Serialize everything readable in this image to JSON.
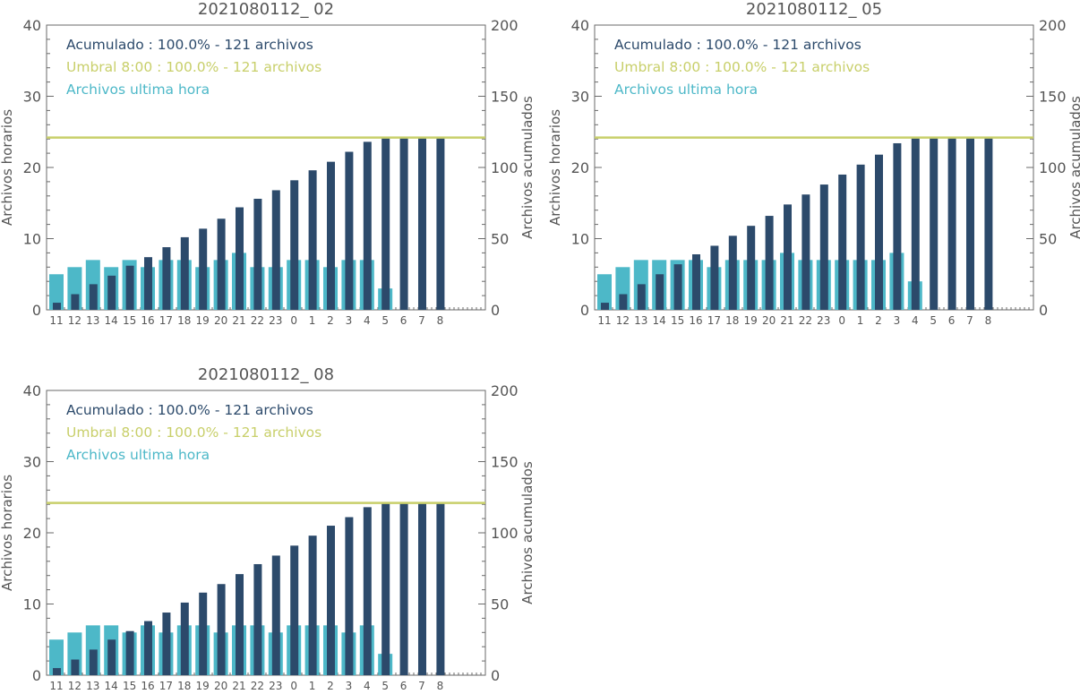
{
  "colors": {
    "hourly": "#4db8c8",
    "cumulative": "#2c4a6b",
    "threshold": "#c8cf6a",
    "axis": "#6a6a6a",
    "label": "#555555"
  },
  "chart_data": [
    {
      "type": "bar",
      "title": "2021080112_ 02",
      "ylabel": "Archivos horarios",
      "ylabel_right": "Archivos acumulados",
      "ylim": [
        0,
        40
      ],
      "ylim_right": [
        0,
        200
      ],
      "yticks": [
        "0",
        "10",
        "20",
        "30",
        "40"
      ],
      "yticks_right": [
        "0",
        "50",
        "100",
        "150",
        "200"
      ],
      "categories": [
        "11",
        "12",
        "13",
        "14",
        "15",
        "16",
        "17",
        "18",
        "19",
        "20",
        "21",
        "22",
        "23",
        "0",
        "1",
        "2",
        "3",
        "4",
        "5",
        "6",
        "7",
        "8"
      ],
      "legend": [
        "Acumulado : 100.0% - 121 archivos",
        "Umbral 8:00 : 100.0% - 121 archivos",
        "Archivos ultima hora"
      ],
      "threshold": 121,
      "series": [
        {
          "name": "Archivos ultima hora",
          "values": [
            5,
            6,
            7,
            6,
            7,
            6,
            7,
            7,
            6,
            7,
            8,
            6,
            6,
            7,
            7,
            6,
            7,
            7,
            3,
            null,
            null,
            null
          ]
        },
        {
          "name": "Acumulado",
          "values": [
            5,
            11,
            18,
            24,
            31,
            37,
            44,
            51,
            57,
            64,
            72,
            78,
            84,
            91,
            98,
            104,
            111,
            118,
            121,
            121,
            121,
            121
          ]
        }
      ]
    },
    {
      "type": "bar",
      "title": "2021080112_ 05",
      "ylabel": "Archivos horarios",
      "ylabel_right": "Archivos acumulados",
      "ylim": [
        0,
        40
      ],
      "ylim_right": [
        0,
        200
      ],
      "yticks": [
        "0",
        "10",
        "20",
        "30",
        "40"
      ],
      "yticks_right": [
        "0",
        "50",
        "100",
        "150",
        "200"
      ],
      "categories": [
        "11",
        "12",
        "13",
        "14",
        "15",
        "16",
        "17",
        "18",
        "19",
        "20",
        "21",
        "22",
        "23",
        "0",
        "1",
        "2",
        "3",
        "4",
        "5",
        "6",
        "7",
        "8"
      ],
      "legend": [
        "Acumulado : 100.0% - 121 archivos",
        "Umbral 8:00 : 100.0% - 121 archivos",
        "Archivos ultima hora"
      ],
      "threshold": 121,
      "series": [
        {
          "name": "Archivos ultima hora",
          "values": [
            5,
            6,
            7,
            7,
            7,
            7,
            6,
            7,
            7,
            7,
            8,
            7,
            7,
            7,
            7,
            7,
            8,
            4,
            null,
            null,
            null,
            null
          ]
        },
        {
          "name": "Acumulado",
          "values": [
            5,
            11,
            18,
            25,
            32,
            39,
            45,
            52,
            59,
            66,
            74,
            81,
            88,
            95,
            102,
            109,
            117,
            121,
            121,
            121,
            121,
            121
          ]
        }
      ]
    },
    {
      "type": "bar",
      "title": "2021080112_ 08",
      "ylabel": "Archivos horarios",
      "ylabel_right": "Archivos acumulados",
      "ylim": [
        0,
        40
      ],
      "ylim_right": [
        0,
        200
      ],
      "yticks": [
        "0",
        "10",
        "20",
        "30",
        "40"
      ],
      "yticks_right": [
        "0",
        "50",
        "100",
        "150",
        "200"
      ],
      "categories": [
        "11",
        "12",
        "13",
        "14",
        "15",
        "16",
        "17",
        "18",
        "19",
        "20",
        "21",
        "22",
        "23",
        "0",
        "1",
        "2",
        "3",
        "4",
        "5",
        "6",
        "7",
        "8"
      ],
      "legend": [
        "Acumulado : 100.0% - 121 archivos",
        "Umbral 8:00 : 100.0% - 121 archivos",
        "Archivos ultima hora"
      ],
      "threshold": 121,
      "series": [
        {
          "name": "Archivos ultima hora",
          "values": [
            5,
            6,
            7,
            7,
            6,
            7,
            6,
            7,
            7,
            6,
            7,
            7,
            6,
            7,
            7,
            7,
            6,
            7,
            3,
            null,
            null,
            null
          ]
        },
        {
          "name": "Acumulado",
          "values": [
            5,
            11,
            18,
            25,
            31,
            38,
            44,
            51,
            58,
            64,
            71,
            78,
            84,
            91,
            98,
            105,
            111,
            118,
            121,
            121,
            121,
            121
          ]
        }
      ]
    }
  ]
}
